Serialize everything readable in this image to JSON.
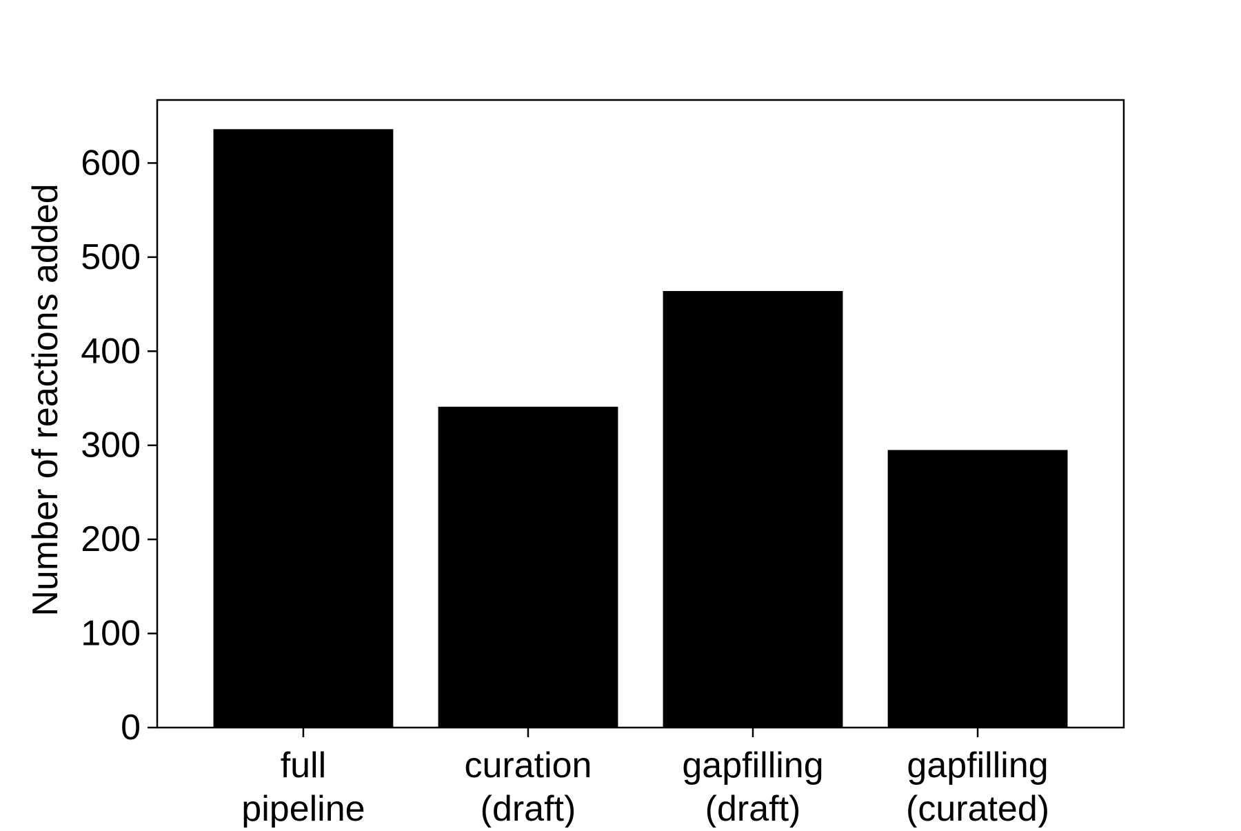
{
  "chart_data": {
    "type": "bar",
    "categories": [
      [
        "full",
        "pipeline"
      ],
      [
        "curation",
        "(draft)"
      ],
      [
        "gapfilling",
        "(draft)"
      ],
      [
        "gapfilling",
        "(curated)"
      ]
    ],
    "values": [
      636,
      341,
      464,
      295
    ],
    "title": "",
    "xlabel": "",
    "ylabel": "Number of reactions added",
    "ylim": [
      0,
      667
    ],
    "yticks": [
      0,
      100,
      200,
      300,
      400,
      500,
      600
    ],
    "bar_color": "#000000",
    "grid": false,
    "legend": "none"
  }
}
